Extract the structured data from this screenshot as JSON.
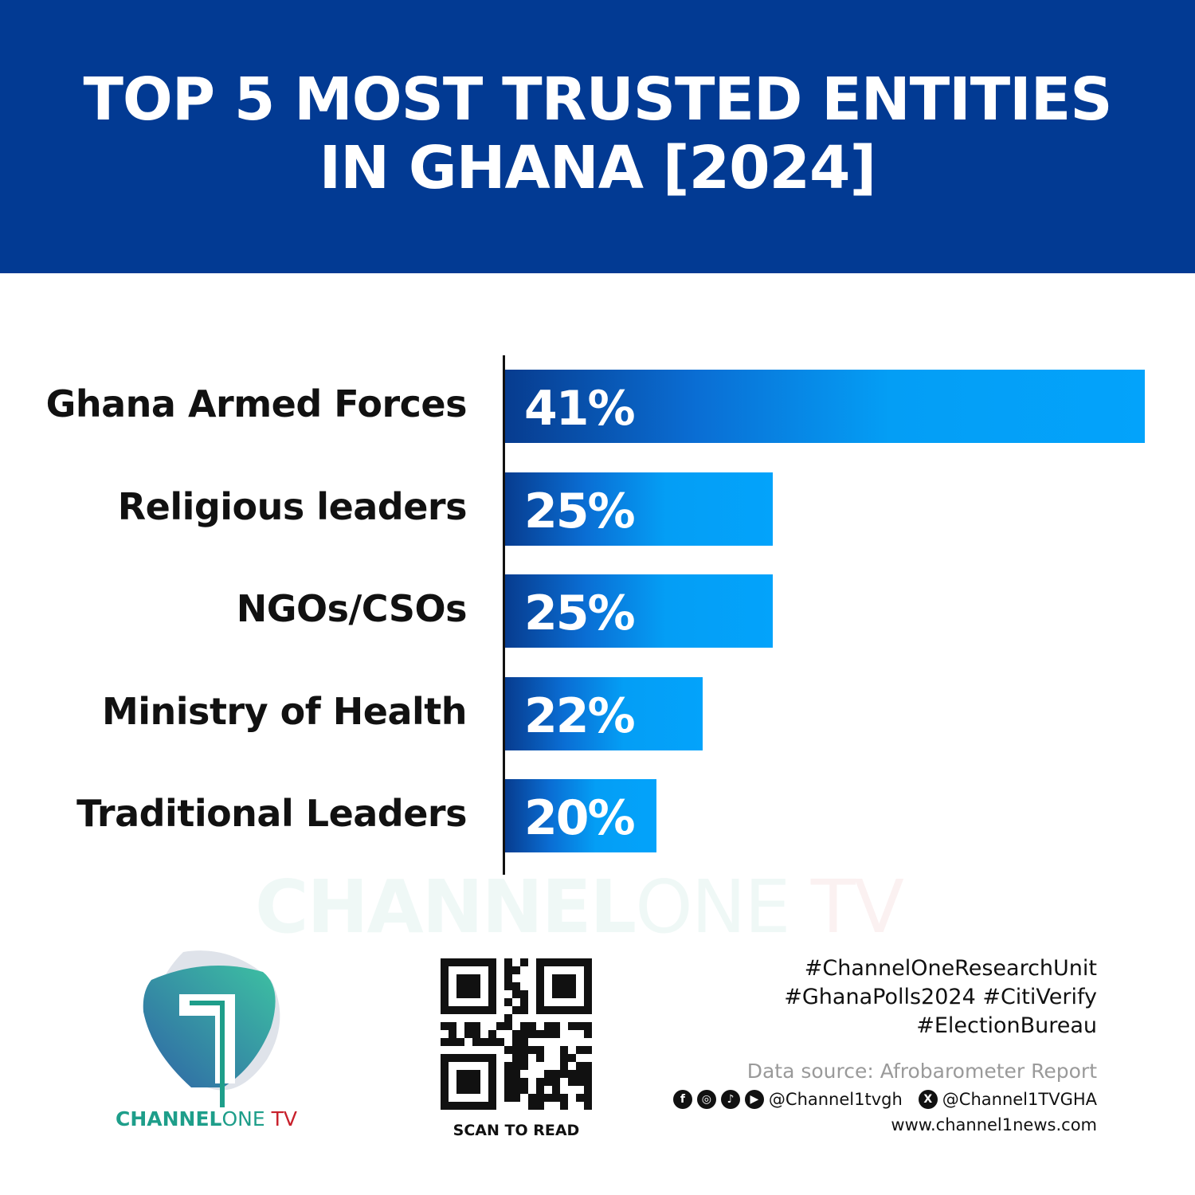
{
  "chart_data": {
    "type": "bar",
    "orientation": "horizontal",
    "title": "TOP 5 MOST TRUSTED ENTITIES IN GHANA [2024]",
    "categories": [
      "Ghana Armed Forces",
      "Religious leaders",
      "NGOs/CSOs",
      "Ministry of Health",
      "Traditional Leaders"
    ],
    "values": [
      41,
      25,
      25,
      22,
      20
    ],
    "data_labels": [
      "41%",
      "25%",
      "25%",
      "22%",
      "20%"
    ],
    "grid": false,
    "colors": {
      "bar_start": "#073c8f",
      "bar_end": "#03a3fb",
      "header": "#023a93"
    }
  },
  "watermark": {
    "brand": "CHANNEL",
    "one": "ONE",
    "tv": " TV"
  },
  "logo": {
    "brand": "CHANNEL",
    "one": "ONE",
    "tv": " TV"
  },
  "qr": {
    "caption": "SCAN TO READ"
  },
  "footer": {
    "hashtags": [
      "#ChannelOneResearchUnit",
      "#GhanaPolls2024 #CitiVerify",
      "#ElectionBureau"
    ],
    "source": "Data source: Afrobarometer Report",
    "handle1": "@Channel1tvgh",
    "handle2": "@Channel1TVGHA",
    "website": "www.channel1news.com",
    "icons": [
      "facebook-icon",
      "instagram-icon",
      "tiktok-icon",
      "youtube-icon",
      "x-icon"
    ]
  }
}
